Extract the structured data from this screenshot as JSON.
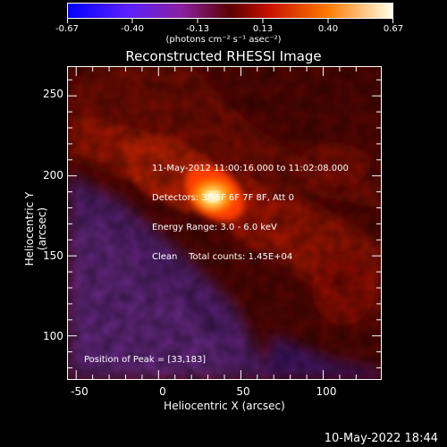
{
  "colorbar": {
    "tick_labels": [
      "-0.67",
      "-0.40",
      "-0.13",
      "0.13",
      "0.40",
      "0.67"
    ],
    "unit_label": "(photons cm⁻² s⁻¹ asec⁻²)"
  },
  "title": "Reconstructed RHESSI Image",
  "info_lines": [
    "11-May-2012 11:00:16.000 to 11:02:08.000",
    "Detectors: 3F 5F 6F 7F 8F, Att 0",
    "Energy Range: 3.0 - 6.0 keV",
    "Clean    Total counts: 1.45E+04"
  ],
  "peak_text": "Position of Peak = [33,183]",
  "axes": {
    "xlabel": "Heliocentric X (arcsec)",
    "ylabel": "Heliocentric Y (arcsec)",
    "xticks": [
      "-50",
      "0",
      "50",
      "100"
    ],
    "yticks": [
      "100",
      "150",
      "200",
      "250"
    ],
    "xlim": [
      -55,
      135
    ],
    "ylim": [
      73,
      268
    ]
  },
  "peak": {
    "x": 33,
    "y": 183
  },
  "colors": {
    "low": "#2b00ff",
    "mid_low": "#5a1a7a",
    "mid": "#8b1500",
    "high": "#ff4a00",
    "peak": "#ffffff"
  },
  "footer": "10-May-2022 18:44"
}
